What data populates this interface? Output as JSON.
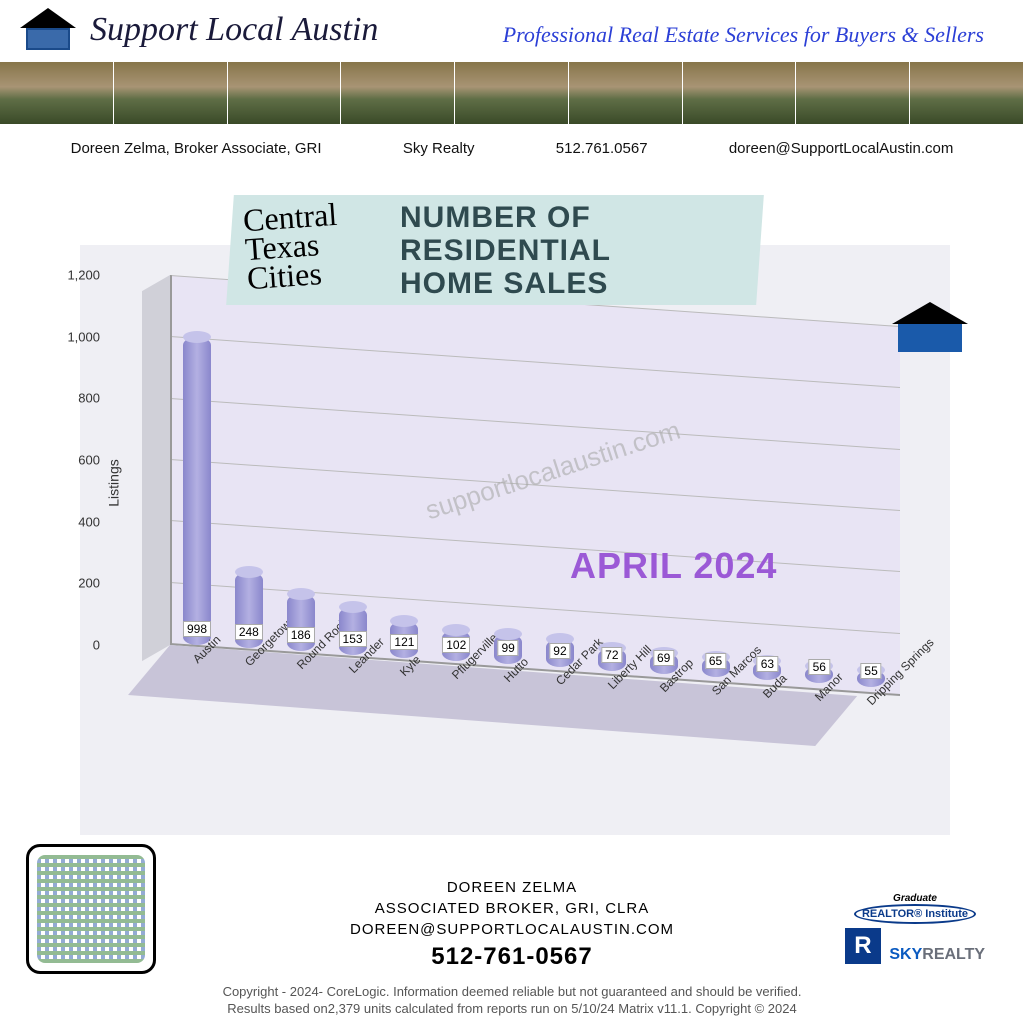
{
  "header": {
    "brand": "Support Local Austin",
    "tagline": "Professional Real Estate Services for Buyers & Sellers",
    "contact": {
      "name": "Doreen Zelma,  Broker Associate, GRI",
      "brokerage": "Sky Realty",
      "phone": "512.761.0567",
      "email": "doreen@SupportLocalAustin.com"
    },
    "photo_count": 9
  },
  "chart": {
    "type": "bar_3d_cylinder",
    "title_script": "Central\nTexas\nCities",
    "title_main": "NUMBER OF\nRESIDENTIAL\nHOME SALES",
    "period": "APRIL 2024",
    "watermark": "supportlocalaustin.com",
    "ylabel": "Listings",
    "ylim": [
      0,
      1200
    ],
    "ytick_step": 200,
    "yticks": [
      "0",
      "200",
      "400",
      "600",
      "800",
      "1,000",
      "1,200"
    ],
    "categories": [
      "Austin",
      "Georgetown",
      "Round Rock",
      "Leander",
      "Kyle",
      "Pflugerville",
      "Hutto",
      "Cedar Park",
      "Liberty Hill",
      "Bastrop",
      "San Marcos",
      "Buda",
      "Manor",
      "Dripping Springs"
    ],
    "values": [
      998,
      248,
      186,
      153,
      121,
      102,
      99,
      92,
      72,
      69,
      65,
      63,
      56,
      55
    ],
    "bar_color": "#8a87cc",
    "bar_top_color": "#c5c3ea",
    "back_wall_color": "#e8e4f4",
    "grid_color": "#bbbbbb",
    "background_color": "#efeff4",
    "title_bg_color": "#d0e6e5",
    "title_main_color": "#2f4a4f",
    "period_color": "#9b59d6",
    "title_fontsize": 30,
    "period_fontsize": 36,
    "label_fontsize": 12
  },
  "footer": {
    "name": "DOREEN ZELMA",
    "title": "ASSOCIATED BROKER, GRI, CLRA",
    "email": "DOREEN@SUPPORTLOCALAUSTIN.COM",
    "phone": "512-761-0567",
    "badge": {
      "grad": "Graduate",
      "inst": "REALTOR® Institute",
      "r": "R",
      "realtor": "REALTOR",
      "sky1": "SKY",
      "sky2": "REALTY"
    },
    "copyright_l1": "Copyright - 2024- CoreLogic. Information deemed reliable but not guaranteed and should be verified.",
    "copyright_l2": "Results based on2,379 units calculated from reports run on 5/10/24 Matrix v11.1. Copyright © 2024"
  }
}
